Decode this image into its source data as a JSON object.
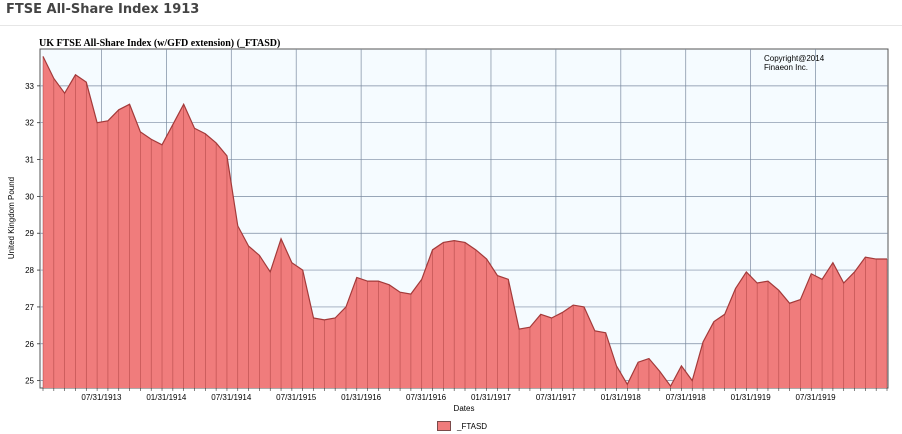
{
  "page": {
    "title": "FTSE All-Share Index 1913"
  },
  "colors": {
    "area_fill": "#f07c7c",
    "area_stroke": "#a33a3a",
    "vertical_line": "#a33a3a",
    "grid": "#7a8aa0",
    "plot_bg": "#f5fbff"
  },
  "chart_data": {
    "type": "area",
    "title": "UK FTSE All-Share Index (w/GFD extension) (_FTASD)",
    "copyright": [
      "Copyright@2014",
      "Finaeon Inc."
    ],
    "xlabel": "Dates",
    "ylabel": "United Kingdom Pound",
    "ylim": [
      24.8,
      34
    ],
    "yticks": [
      25,
      26,
      27,
      28,
      29,
      30,
      31,
      32,
      33
    ],
    "xticks": [
      "07/31/1913",
      "01/31/1914",
      "07/31/1914",
      "07/31/1915",
      "01/31/1916",
      "07/31/1916",
      "01/31/1917",
      "07/31/1917",
      "01/31/1918",
      "07/31/1918",
      "01/31/1919",
      "07/31/1919"
    ],
    "xtick_index": [
      5.4,
      11.4,
      17.4,
      23.4,
      29.4,
      35.4,
      41.4,
      47.4,
      53.4,
      59.4,
      65.4,
      71.4
    ],
    "grid": true,
    "legend": {
      "position": "bottom-center",
      "entries": [
        "_FTASD"
      ]
    },
    "series": [
      {
        "name": "_FTASD",
        "values": [
          33.8,
          33.2,
          32.8,
          33.3,
          33.1,
          32.0,
          32.05,
          32.35,
          32.5,
          31.75,
          31.55,
          31.4,
          31.95,
          32.5,
          31.85,
          31.7,
          31.45,
          31.1,
          29.2,
          28.65,
          28.4,
          27.95,
          28.85,
          28.2,
          28.0,
          26.7,
          26.65,
          26.7,
          27.0,
          27.8,
          27.7,
          27.7,
          27.6,
          27.4,
          27.35,
          27.75,
          28.55,
          28.75,
          28.8,
          28.75,
          28.55,
          28.3,
          27.85,
          27.75,
          26.4,
          26.45,
          26.8,
          26.7,
          26.85,
          27.05,
          27.0,
          26.35,
          26.3,
          25.4,
          24.9,
          25.5,
          25.6,
          25.25,
          24.85,
          25.4,
          25.0,
          26.05,
          26.6,
          26.8,
          27.5,
          27.95,
          27.65,
          27.7,
          27.45,
          27.1,
          27.2,
          27.9,
          27.75,
          28.2,
          27.65,
          27.95,
          28.35,
          28.3,
          28.3
        ]
      }
    ]
  }
}
